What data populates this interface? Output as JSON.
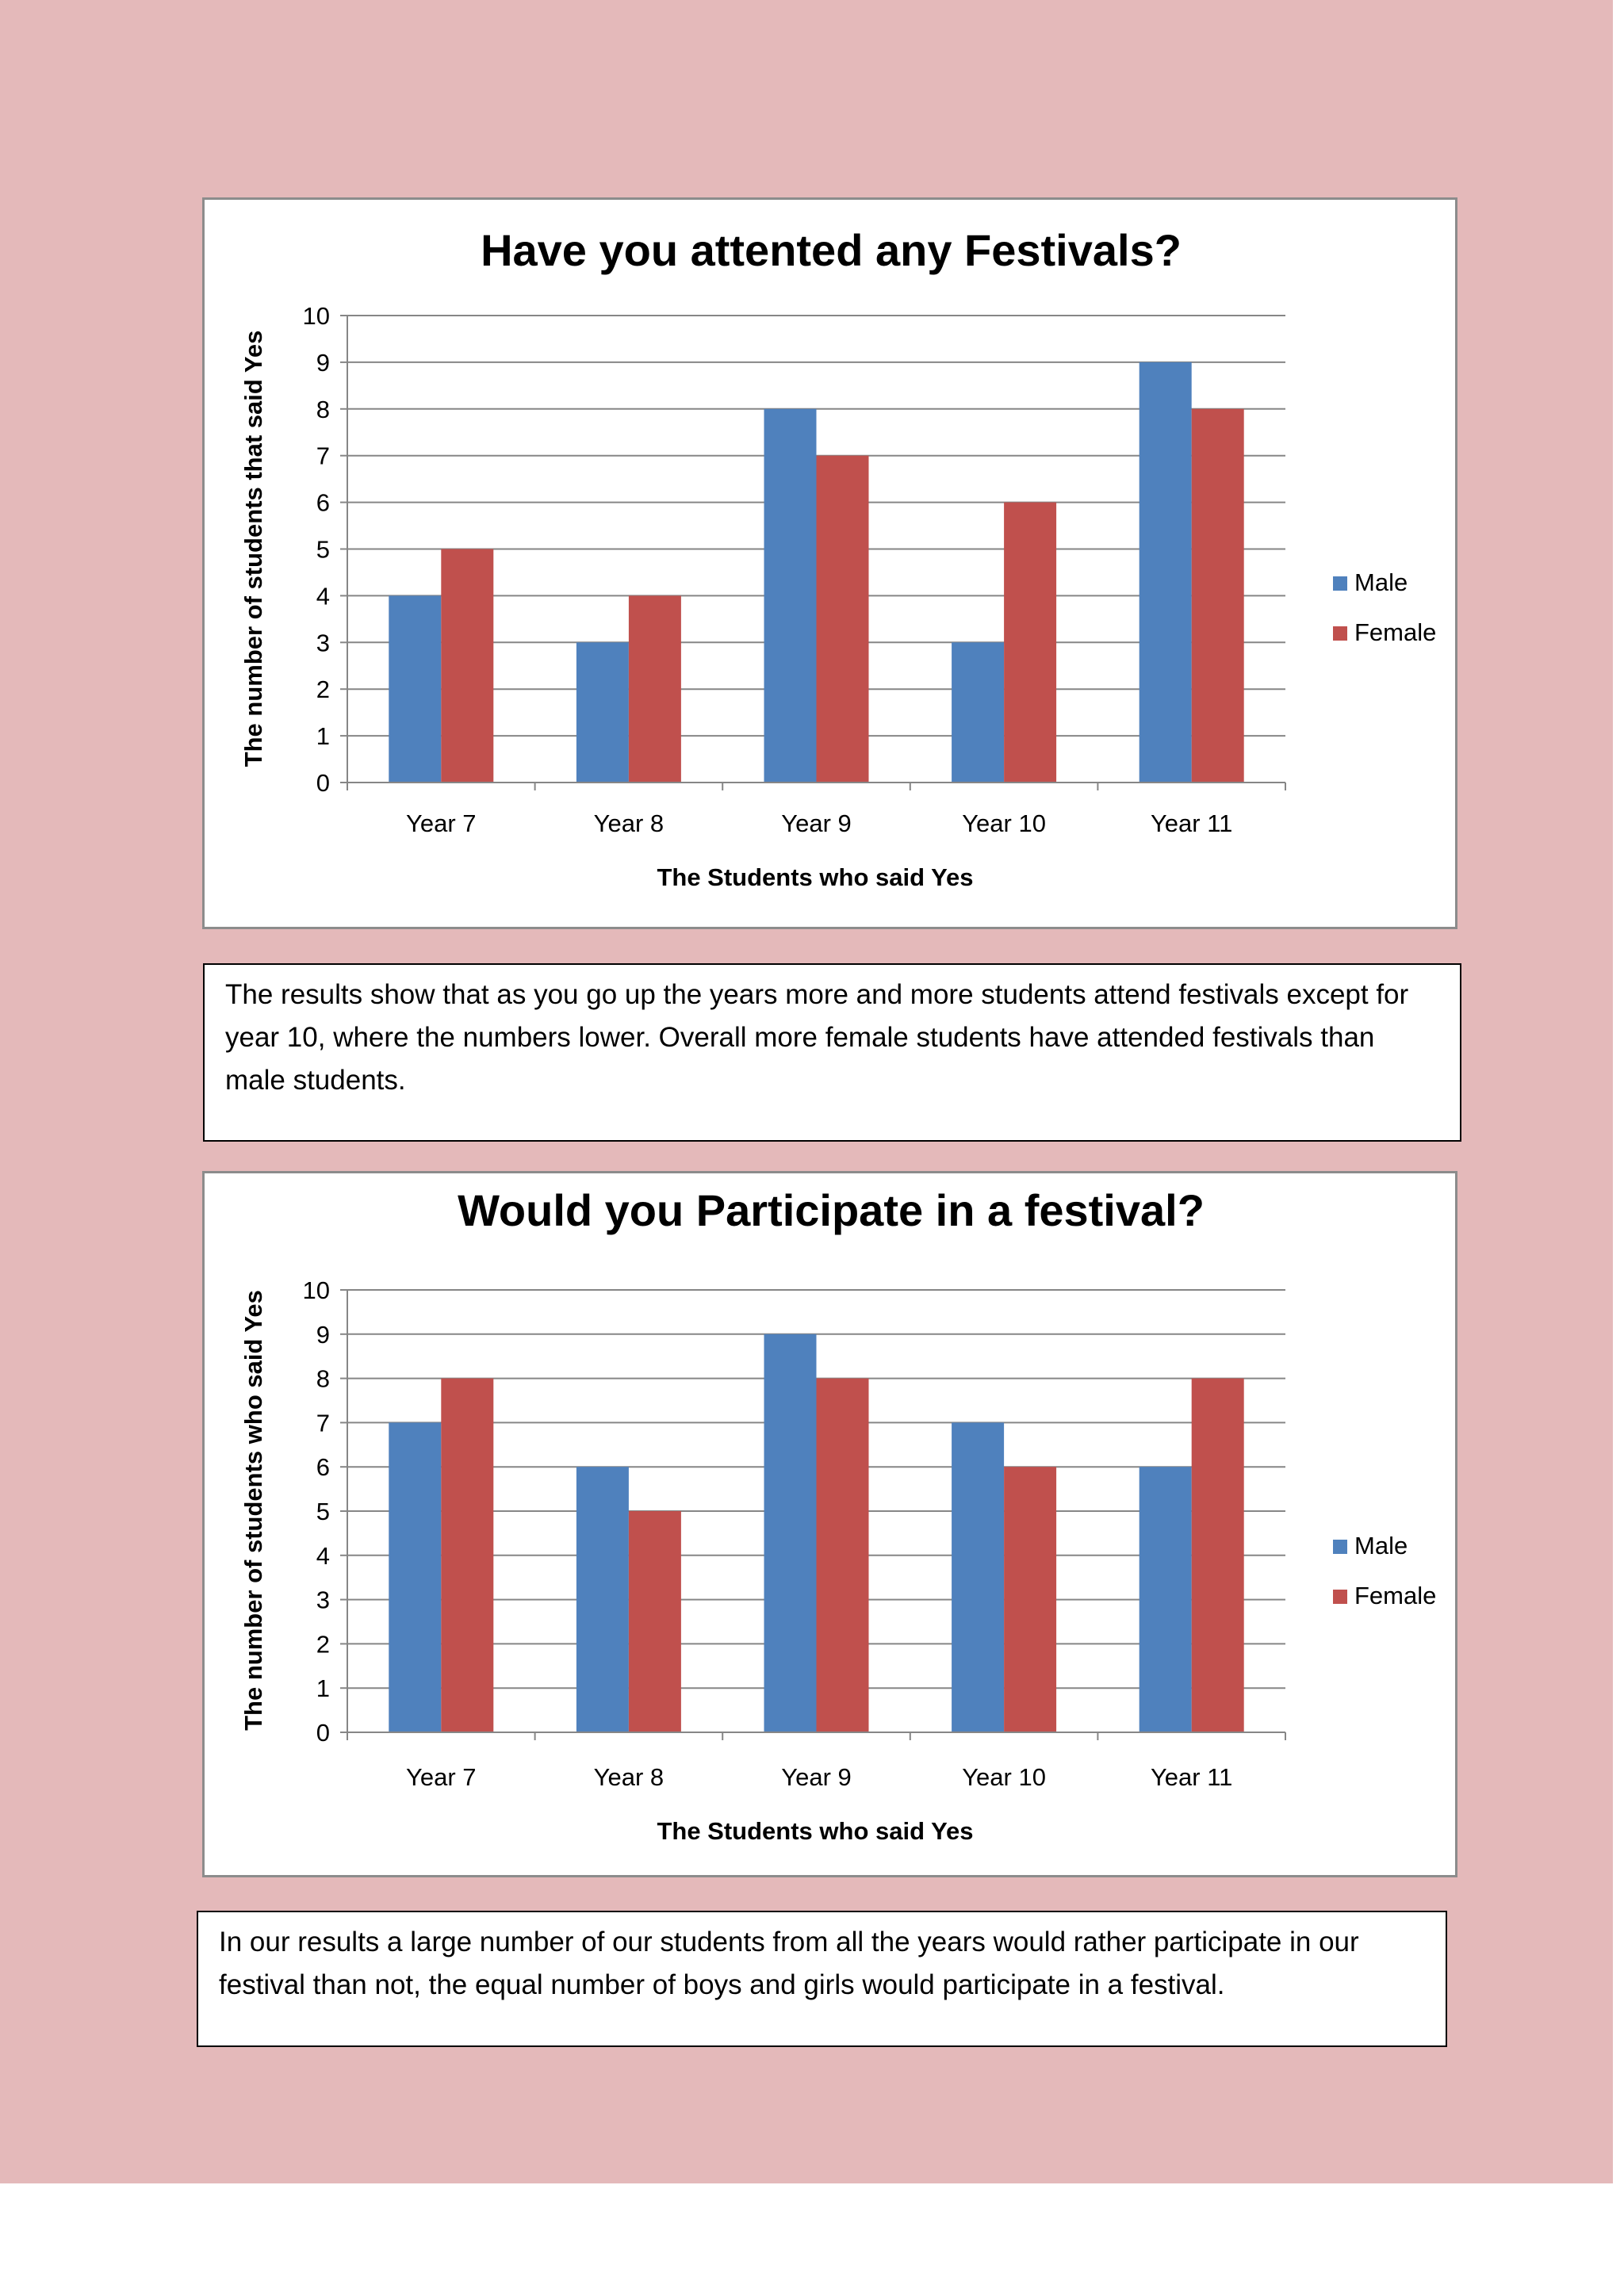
{
  "colors": {
    "page_background": "#e4b9ba",
    "male": "#4f81bd",
    "female": "#c0504d",
    "gridline": "#868686"
  },
  "chart_data": [
    {
      "type": "bar",
      "title": "Have you attented any Festivals?",
      "xlabel": "The Students who said Yes",
      "ylabel": "The number of students that said Yes",
      "categories": [
        "Year 7",
        "Year 8",
        "Year 9",
        "Year 10",
        "Year 11"
      ],
      "series": [
        {
          "name": "Male",
          "values": [
            4,
            3,
            8,
            3,
            9
          ]
        },
        {
          "name": "Female",
          "values": [
            5,
            4,
            7,
            6,
            8
          ]
        }
      ],
      "ylim": [
        0,
        10
      ],
      "yticks": [
        "0",
        "1",
        "2",
        "3",
        "4",
        "5",
        "6",
        "7",
        "8",
        "9",
        "10"
      ],
      "grid": true,
      "legend": "right"
    },
    {
      "type": "bar",
      "title": "Would you Participate in a festival?",
      "xlabel": "The Students who said Yes",
      "ylabel": "The number of students who said Yes",
      "categories": [
        "Year 7",
        "Year 8",
        "Year 9",
        "Year 10",
        "Year 11"
      ],
      "series": [
        {
          "name": "Male",
          "values": [
            7,
            6,
            9,
            7,
            6
          ]
        },
        {
          "name": "Female",
          "values": [
            8,
            5,
            8,
            6,
            8
          ]
        }
      ],
      "ylim": [
        0,
        10
      ],
      "yticks": [
        "0",
        "1",
        "2",
        "3",
        "4",
        "5",
        "6",
        "7",
        "8",
        "9",
        "10"
      ],
      "grid": true,
      "legend": "right"
    }
  ],
  "summaries": {
    "festivals_attended": "The results show that as you go up the years more and more students attend festivals except for year 10, where the numbers lower. Overall more female students have attended festivals than male students.",
    "festival_participation": "In our results a large number of our students from all the years would rather participate in our festival than not, the equal number of boys and girls would participate in a festival."
  }
}
